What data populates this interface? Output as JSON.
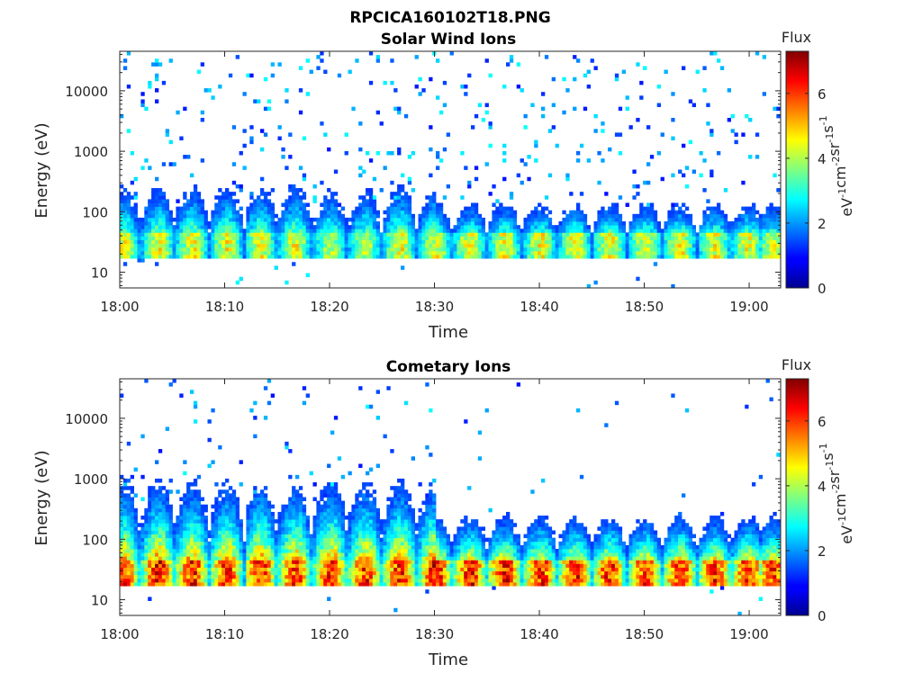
{
  "figure_title": "RPCICA160102T18.PNG",
  "colors": {
    "background": "#ffffff",
    "axis": "#262626"
  },
  "chart_data": [
    {
      "type": "heatmap",
      "title": "Solar Wind Ions",
      "xlabel": "Time",
      "ylabel": "Energy (eV)",
      "yscale": "log",
      "ylim": [
        5.5,
        45000
      ],
      "xlim": [
        "18:00",
        "19:03"
      ],
      "xticks": [
        "18:00",
        "18:10",
        "18:20",
        "18:30",
        "18:40",
        "18:50",
        "19:00"
      ],
      "yticks": [
        "10",
        "100",
        "1000",
        "10000"
      ],
      "colorbar": {
        "title": "Flux",
        "label": "eV-1cm-2sr-1s-1",
        "label_parts": [
          "eV",
          "-1",
          "cm",
          "-2",
          "sr",
          "-1",
          "s",
          "-1"
        ],
        "ticks": [
          "0",
          "2",
          "4",
          "6"
        ],
        "range": [
          0,
          7.3
        ],
        "colormap": "jet"
      },
      "pulse_times_min": [
        0.4,
        3.8,
        7.0,
        10.3,
        13.5,
        16.8,
        20.2,
        23.5,
        26.8,
        30.2,
        33.5,
        36.8,
        40.2,
        43.5,
        46.8,
        50.2,
        53.5,
        56.8,
        60.0,
        62.3
      ],
      "peak_flux": [
        4.6,
        4.6,
        4.6,
        4.6,
        4.6,
        4.6,
        4.2,
        4.2,
        4.6,
        4.6,
        4.6,
        4.6,
        4.6,
        4.6,
        4.6,
        4.6,
        4.6,
        4.6,
        4.6,
        4.4
      ],
      "peak_energy_eV": 30,
      "grid": false,
      "legend": "colorbar-right"
    },
    {
      "type": "heatmap",
      "title": "Cometary Ions",
      "xlabel": "Time",
      "ylabel": "Energy (eV)",
      "yscale": "log",
      "ylim": [
        5.5,
        45000
      ],
      "xlim": [
        "18:00",
        "19:03"
      ],
      "xticks": [
        "18:00",
        "18:10",
        "18:20",
        "18:30",
        "18:40",
        "18:50",
        "19:00"
      ],
      "yticks": [
        "10",
        "100",
        "1000",
        "10000"
      ],
      "colorbar": {
        "title": "Flux",
        "label": "eV-1cm-2sr-1s-1",
        "label_parts": [
          "eV",
          "-1",
          "cm",
          "-2",
          "sr",
          "-1",
          "s",
          "-1"
        ],
        "ticks": [
          "0",
          "2",
          "4",
          "6"
        ],
        "range": [
          0,
          7.3
        ],
        "colormap": "jet"
      },
      "pulse_times_min": [
        0.4,
        3.8,
        7.0,
        10.3,
        13.5,
        16.8,
        20.2,
        23.5,
        26.8,
        30.2,
        33.5,
        36.8,
        40.2,
        43.5,
        46.8,
        50.2,
        53.5,
        56.8,
        60.0,
        62.3
      ],
      "peak_flux": [
        6.4,
        6.5,
        6.4,
        6.3,
        6.4,
        6.3,
        6.4,
        6.3,
        6.4,
        6.6,
        6.6,
        6.5,
        6.4,
        6.4,
        6.4,
        6.3,
        6.5,
        6.4,
        6.4,
        6.2
      ],
      "peak_energy_eV": 30,
      "grid": false,
      "legend": "colorbar-right"
    }
  ]
}
